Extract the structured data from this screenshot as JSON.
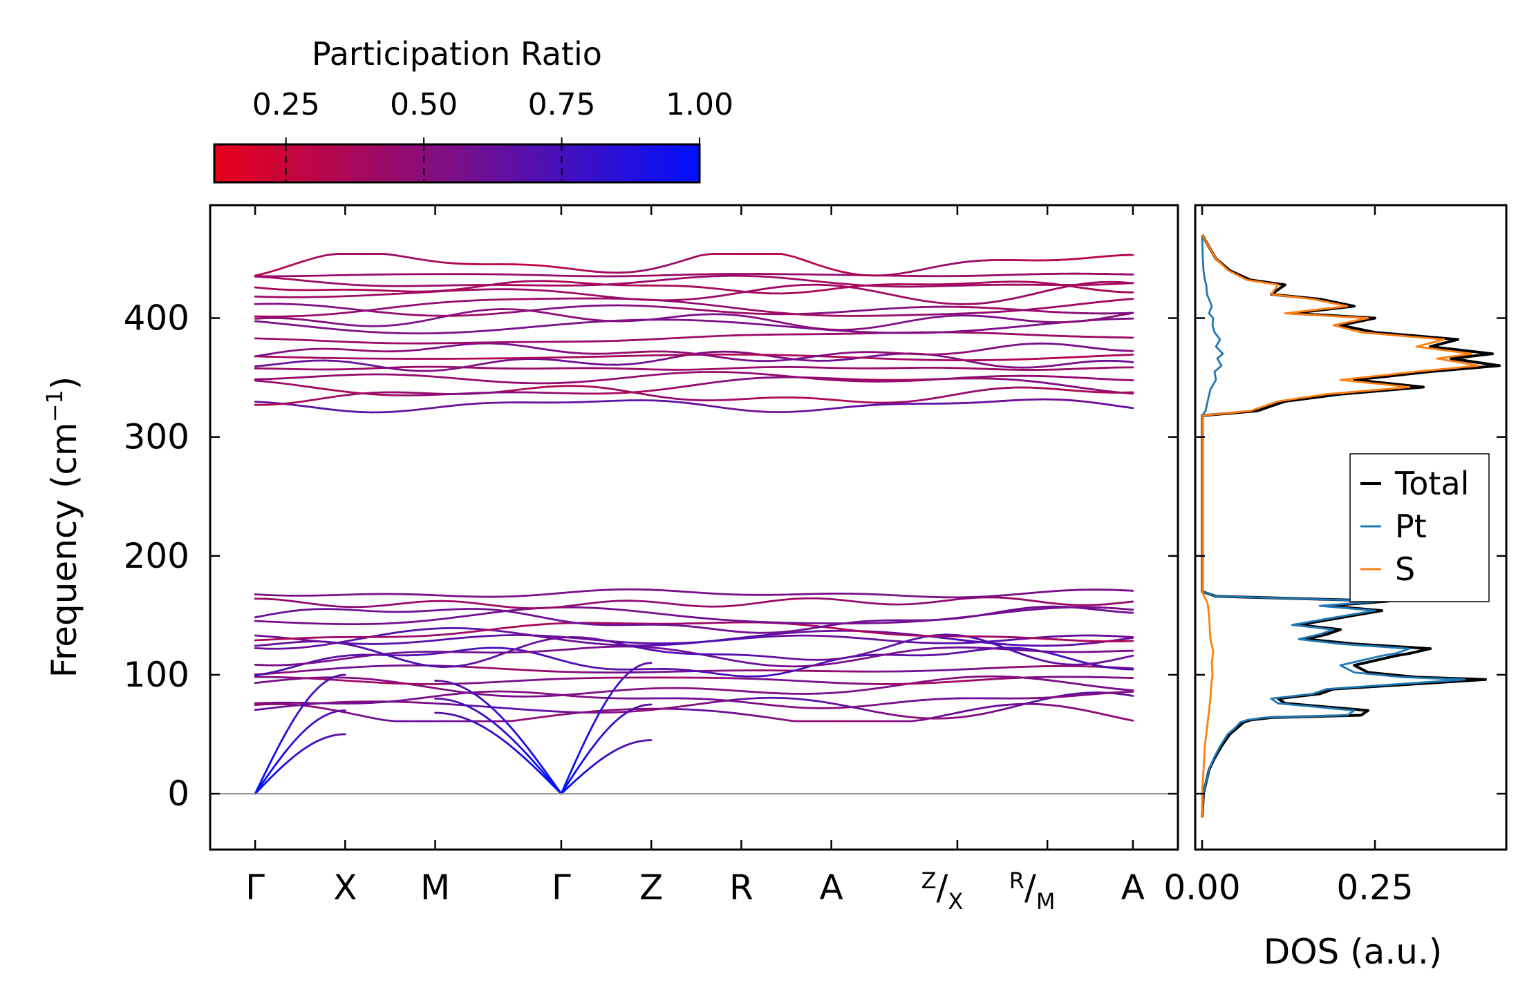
{
  "colors": {
    "cmap_low": "#e8001a",
    "cmap_mid": "#7a0f8a",
    "cmap_high": "#0010ff",
    "total": "#000000",
    "pt": "#1f77b4",
    "s": "#ff7f0e",
    "zero_line": "#888888"
  },
  "colorbar": {
    "title": "Participation Ratio",
    "ticks": [
      0.25,
      0.5,
      0.75,
      1.0
    ],
    "tick_labels": [
      "0.25",
      "0.50",
      "0.75",
      "1.00"
    ],
    "range": [
      0.12,
      1.0
    ]
  },
  "chart_data": [
    {
      "type": "line",
      "name": "phonon-band-structure",
      "ylabel": "Frequency (cm",
      "ylabel_sup": "−1",
      "ylabel_close": ")",
      "ylim": [
        -47,
        495
      ],
      "yticks": [
        0,
        100,
        200,
        300,
        400
      ],
      "ytick_labels": [
        "0",
        "100",
        "200",
        "300",
        "400"
      ],
      "kpoints": [
        {
          "label": "Γ",
          "x": 0.0
        },
        {
          "label": "X",
          "x": 1.0
        },
        {
          "label": "M",
          "x": 2.0
        },
        {
          "label": "Γ",
          "x": 3.4
        },
        {
          "label": "Z",
          "x": 4.4
        },
        {
          "label": "R",
          "x": 5.4
        },
        {
          "label": "A",
          "x": 6.4
        },
        {
          "label": "Z",
          "sub": "X",
          "x": 7.8
        },
        {
          "label": "R",
          "sub": "M",
          "x": 8.8
        },
        {
          "label": "A",
          "x": 9.75
        }
      ],
      "segments": [
        [
          0.0,
          7.8
        ],
        [
          7.8,
          8.8
        ],
        [
          8.8,
          9.75
        ]
      ],
      "xlim": [
        -0.5,
        10.25
      ],
      "bands": {
        "acoustic": {
          "gamma_positions": [
            0.0,
            3.4
          ],
          "gamma_freq": 0,
          "branch_endpoints": [
            {
              "at": "X",
              "freq": 50
            },
            {
              "at": "X",
              "freq": 70
            },
            {
              "at": "X",
              "freq": 100
            },
            {
              "at": "M",
              "freq": 68
            },
            {
              "at": "M",
              "freq": 80
            },
            {
              "at": "M",
              "freq": 95
            }
          ],
          "pr": 1.0
        },
        "low_optical_range": [
          65,
          168
        ],
        "high_optical_range": [
          322,
          450
        ],
        "low_optical_count": 16,
        "high_optical_count": 18
      }
    },
    {
      "type": "line",
      "name": "density-of-states",
      "xlabel": "DOS (a.u.)",
      "xticks": [
        0.0,
        0.25
      ],
      "xtick_labels": [
        "0.00",
        "0.25"
      ],
      "xlim": [
        -0.01,
        0.44
      ],
      "ylim": [
        -47,
        495
      ],
      "legend": {
        "position": "center-right",
        "entries": [
          {
            "label": "Total",
            "color_key": "total"
          },
          {
            "label": "Pt",
            "color_key": "pt"
          },
          {
            "label": "S",
            "color_key": "s"
          }
        ]
      },
      "series": [
        {
          "name": "Total",
          "points": [
            [
              0.0,
              -20
            ],
            [
              0.002,
              0
            ],
            [
              0.006,
              10
            ],
            [
              0.01,
              20
            ],
            [
              0.018,
              30
            ],
            [
              0.028,
              40
            ],
            [
              0.04,
              50
            ],
            [
              0.05,
              55
            ],
            [
              0.06,
              60
            ],
            [
              0.07,
              62
            ],
            [
              0.1,
              64
            ],
            [
              0.23,
              66
            ],
            [
              0.24,
              70
            ],
            [
              0.12,
              76
            ],
            [
              0.11,
              80
            ],
            [
              0.17,
              84
            ],
            [
              0.19,
              88
            ],
            [
              0.3,
              92
            ],
            [
              0.41,
              96
            ],
            [
              0.31,
              98
            ],
            [
              0.24,
              102
            ],
            [
              0.22,
              108
            ],
            [
              0.25,
              112
            ],
            [
              0.28,
              116
            ],
            [
              0.3,
              118
            ],
            [
              0.33,
              122
            ],
            [
              0.22,
              126
            ],
            [
              0.15,
              130
            ],
            [
              0.18,
              134
            ],
            [
              0.2,
              138
            ],
            [
              0.14,
              142
            ],
            [
              0.2,
              148
            ],
            [
              0.26,
              154
            ],
            [
              0.18,
              158
            ],
            [
              0.27,
              162
            ],
            [
              0.02,
              166
            ],
            [
              0.0,
              170
            ],
            [
              0.0,
              200
            ],
            [
              0.0,
              260
            ],
            [
              0.0,
              318
            ],
            [
              0.08,
              322
            ],
            [
              0.1,
              326
            ],
            [
              0.12,
              330
            ],
            [
              0.2,
              336
            ],
            [
              0.32,
              342
            ],
            [
              0.22,
              348
            ],
            [
              0.33,
              355
            ],
            [
              0.43,
              360
            ],
            [
              0.36,
              366
            ],
            [
              0.42,
              370
            ],
            [
              0.33,
              376
            ],
            [
              0.37,
              382
            ],
            [
              0.25,
              388
            ],
            [
              0.2,
              394
            ],
            [
              0.25,
              400
            ],
            [
              0.13,
              404
            ],
            [
              0.22,
              410
            ],
            [
              0.17,
              416
            ],
            [
              0.1,
              420
            ],
            [
              0.12,
              428
            ],
            [
              0.07,
              432
            ],
            [
              0.04,
              440
            ],
            [
              0.02,
              450
            ],
            [
              0.01,
              460
            ],
            [
              0.0,
              470
            ]
          ]
        },
        {
          "name": "Pt",
          "points": [
            [
              0.0,
              -20
            ],
            [
              0.002,
              0
            ],
            [
              0.006,
              10
            ],
            [
              0.01,
              20
            ],
            [
              0.017,
              30
            ],
            [
              0.026,
              40
            ],
            [
              0.037,
              50
            ],
            [
              0.047,
              55
            ],
            [
              0.055,
              60
            ],
            [
              0.065,
              62
            ],
            [
              0.09,
              64
            ],
            [
              0.21,
              66
            ],
            [
              0.22,
              70
            ],
            [
              0.11,
              76
            ],
            [
              0.1,
              80
            ],
            [
              0.16,
              84
            ],
            [
              0.18,
              88
            ],
            [
              0.28,
              92
            ],
            [
              0.38,
              96
            ],
            [
              0.29,
              98
            ],
            [
              0.22,
              102
            ],
            [
              0.2,
              108
            ],
            [
              0.23,
              112
            ],
            [
              0.26,
              116
            ],
            [
              0.28,
              118
            ],
            [
              0.3,
              122
            ],
            [
              0.2,
              126
            ],
            [
              0.14,
              130
            ],
            [
              0.17,
              134
            ],
            [
              0.19,
              138
            ],
            [
              0.13,
              142
            ],
            [
              0.19,
              148
            ],
            [
              0.25,
              154
            ],
            [
              0.17,
              158
            ],
            [
              0.26,
              162
            ],
            [
              0.02,
              166
            ],
            [
              0.0,
              170
            ],
            [
              0.0,
              200
            ],
            [
              0.0,
              260
            ],
            [
              0.0,
              318
            ],
            [
              0.005,
              322
            ],
            [
              0.008,
              330
            ],
            [
              0.012,
              340
            ],
            [
              0.02,
              348
            ],
            [
              0.018,
              355
            ],
            [
              0.028,
              360
            ],
            [
              0.022,
              366
            ],
            [
              0.03,
              370
            ],
            [
              0.02,
              376
            ],
            [
              0.026,
              382
            ],
            [
              0.018,
              388
            ],
            [
              0.015,
              394
            ],
            [
              0.016,
              400
            ],
            [
              0.01,
              404
            ],
            [
              0.014,
              410
            ],
            [
              0.01,
              416
            ],
            [
              0.007,
              420
            ],
            [
              0.006,
              428
            ],
            [
              0.004,
              432
            ],
            [
              0.002,
              440
            ],
            [
              0.001,
              450
            ],
            [
              0.0,
              470
            ]
          ]
        },
        {
          "name": "S",
          "points": [
            [
              0.0,
              -20
            ],
            [
              0.0,
              0
            ],
            [
              0.001,
              10
            ],
            [
              0.002,
              20
            ],
            [
              0.003,
              30
            ],
            [
              0.004,
              40
            ],
            [
              0.006,
              50
            ],
            [
              0.008,
              60
            ],
            [
              0.01,
              70
            ],
            [
              0.012,
              80
            ],
            [
              0.013,
              90
            ],
            [
              0.015,
              100
            ],
            [
              0.014,
              110
            ],
            [
              0.016,
              120
            ],
            [
              0.012,
              130
            ],
            [
              0.011,
              140
            ],
            [
              0.01,
              150
            ],
            [
              0.008,
              160
            ],
            [
              0.003,
              166
            ],
            [
              0.0,
              170
            ],
            [
              0.0,
              200
            ],
            [
              0.0,
              260
            ],
            [
              0.0,
              318
            ],
            [
              0.07,
              322
            ],
            [
              0.09,
              326
            ],
            [
              0.11,
              330
            ],
            [
              0.18,
              336
            ],
            [
              0.3,
              342
            ],
            [
              0.2,
              348
            ],
            [
              0.31,
              355
            ],
            [
              0.4,
              360
            ],
            [
              0.34,
              366
            ],
            [
              0.39,
              370
            ],
            [
              0.31,
              376
            ],
            [
              0.35,
              382
            ],
            [
              0.23,
              388
            ],
            [
              0.19,
              394
            ],
            [
              0.24,
              400
            ],
            [
              0.12,
              404
            ],
            [
              0.21,
              410
            ],
            [
              0.16,
              416
            ],
            [
              0.1,
              420
            ],
            [
              0.11,
              428
            ],
            [
              0.065,
              432
            ],
            [
              0.038,
              440
            ],
            [
              0.02,
              450
            ],
            [
              0.01,
              460
            ],
            [
              0.0,
              470
            ]
          ]
        }
      ]
    }
  ]
}
